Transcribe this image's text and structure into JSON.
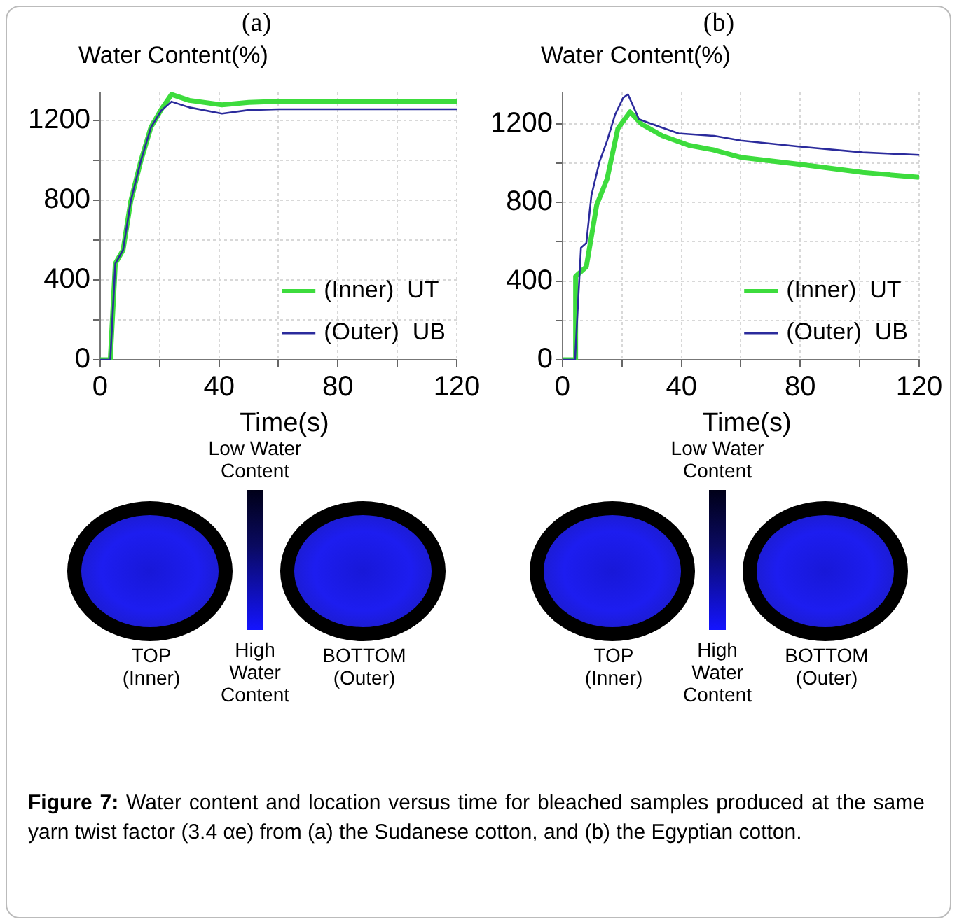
{
  "chart_data": [
    {
      "type": "line",
      "title": "(a)",
      "xlabel": "Time(s)",
      "ylabel": "Water Content(%)",
      "xlim": [
        0,
        120
      ],
      "xticks": [
        0,
        {
          "value": 20,
          "label": null
        },
        40,
        {
          "value": 60,
          "label": null
        },
        80,
        {
          "value": 100,
          "label": null
        },
        120
      ],
      "ylim": [
        0,
        1340
      ],
      "yticks": [
        0,
        {
          "value": 200,
          "label": null
        },
        400,
        {
          "value": 600,
          "label": null
        },
        800,
        {
          "value": 1000,
          "label": null
        },
        1200
      ],
      "grid": true,
      "legend": "bottom right",
      "marker": "none",
      "line_style": "solid",
      "series": [
        {
          "name": "(Inner)  UT",
          "color": "#3ddc3d",
          "x": [
            0,
            3.4,
            5.1,
            7.7,
            10.3,
            13.7,
            17.1,
            20.6,
            24,
            30,
            41,
            50,
            60,
            80,
            100,
            120
          ],
          "values": [
            0,
            0,
            482,
            550,
            796,
            998,
            1166,
            1256,
            1330,
            1300,
            1278,
            1290,
            1295,
            1296,
            1296,
            1296
          ]
        },
        {
          "name": "(Outer)  UB",
          "color": "#2b2b9c",
          "x": [
            0,
            3.4,
            5.1,
            7.7,
            10.3,
            13.7,
            17.1,
            20.6,
            24,
            30,
            41,
            50,
            60,
            80,
            100,
            120
          ],
          "values": [
            0,
            0,
            482,
            550,
            796,
            998,
            1166,
            1250,
            1294,
            1265,
            1234,
            1252,
            1256,
            1256,
            1256,
            1256
          ]
        }
      ],
      "annotations": [
        "Low Water Content",
        "TOP (Inner)",
        "High Water Content",
        "BOTTOM (Outer)"
      ]
    },
    {
      "type": "line",
      "title": "(b)",
      "xlabel": "Time(s)",
      "ylabel": "Water Content(%)",
      "xlim": [
        0,
        120
      ],
      "xticks": [
        0,
        {
          "value": 20,
          "label": null
        },
        40,
        {
          "value": 60,
          "label": null
        },
        80,
        {
          "value": 100,
          "label": null
        },
        120
      ],
      "ylim": [
        0,
        1360
      ],
      "yticks": [
        0,
        {
          "value": 200,
          "label": null
        },
        400,
        {
          "value": 600,
          "label": null
        },
        800,
        {
          "value": 1000,
          "label": null
        },
        1200
      ],
      "grid": true,
      "legend": "bottom right",
      "marker": "none",
      "line_style": "solid",
      "series": [
        {
          "name": "(Inner)  UT",
          "color": "#3ddc3d",
          "x": [
            0,
            4.2,
            4.4,
            8,
            11.5,
            15,
            18.6,
            22.7,
            26.5,
            33.6,
            42.5,
            51,
            60,
            80,
            101,
            120
          ],
          "values": [
            0,
            0,
            424,
            473,
            788,
            921,
            1176,
            1261,
            1200,
            1139,
            1091,
            1067,
            1030,
            994,
            953,
            928
          ]
        },
        {
          "name": "(Outer)  UB",
          "color": "#2b2b9c",
          "x": [
            0,
            4.2,
            6.2,
            8,
            9.7,
            12.4,
            15,
            17.7,
            20.4,
            22,
            25.7,
            30,
            39,
            51,
            60,
            80,
            101,
            120
          ],
          "values": [
            0,
            0,
            570,
            594,
            836,
            1006,
            1115,
            1248,
            1333,
            1350,
            1224,
            1200,
            1152,
            1139,
            1115,
            1084,
            1055,
            1042
          ]
        }
      ],
      "annotations": [
        "Low Water Content",
        "TOP (Inner)",
        "High Water Content",
        "BOTTOM (Outer)"
      ]
    },
    {
      "type": "other",
      "annotations": [
        "Figure 7:",
        "Water content and location versus time for bleached samples produced at the same yarn twist factor (3.4 αe) from (a) the Sudanese cotton, and (b) the Egyptian cotton."
      ]
    }
  ]
}
